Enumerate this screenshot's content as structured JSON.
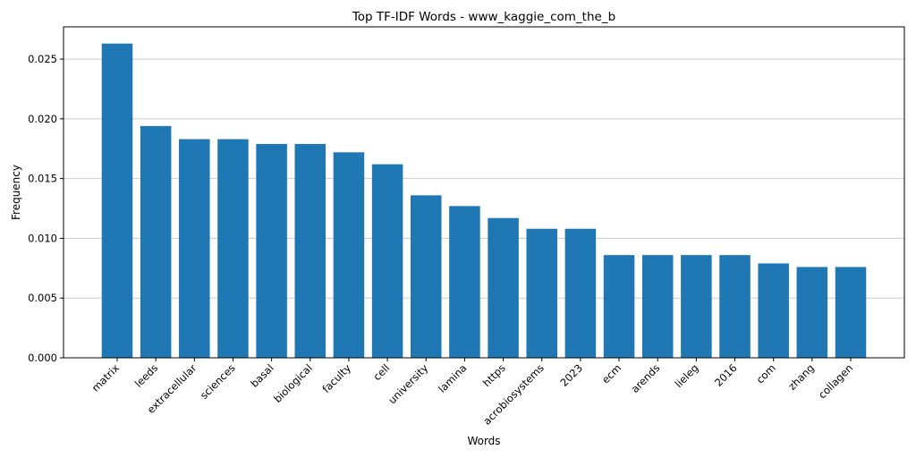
{
  "chart_data": {
    "type": "bar",
    "title": "Top TF-IDF Words - www_kaggie_com_the_b",
    "x_label": "Words",
    "y_label": "Frequency",
    "categories": [
      "matrix",
      "leeds",
      "extracellular",
      "sciences",
      "basal",
      "biological",
      "faculty",
      "cell",
      "university",
      "lamina",
      "https",
      "acrobiosystems",
      "2023",
      "ecm",
      "arends",
      "lieleg",
      "2016",
      "com",
      "zhang",
      "collagen"
    ],
    "values": [
      0.0263,
      0.0194,
      0.0183,
      0.0183,
      0.0179,
      0.0179,
      0.0172,
      0.0162,
      0.0136,
      0.0127,
      0.0117,
      0.0108,
      0.0108,
      0.0086,
      0.0086,
      0.0086,
      0.0086,
      0.0079,
      0.0076,
      0.0076
    ],
    "color": "#1f77b4",
    "ylim": [
      0,
      0.0277
    ],
    "yticks": [
      {
        "value": 0,
        "label": "0.000"
      },
      {
        "value": 0.005,
        "label": "0.005"
      },
      {
        "value": 0.01,
        "label": "0.010"
      },
      {
        "value": 0.015,
        "label": "0.015"
      },
      {
        "value": 0.02,
        "label": "0.020"
      },
      {
        "value": 0.025,
        "label": "0.025"
      }
    ],
    "grid": true
  }
}
